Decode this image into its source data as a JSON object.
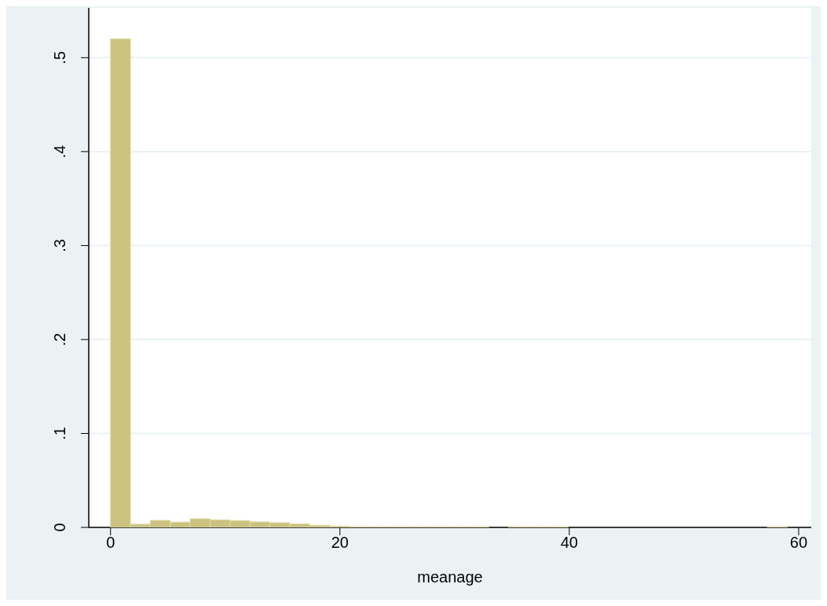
{
  "chart_data": {
    "type": "histogram",
    "xlabel": "meanage",
    "bins": [
      0,
      1.735,
      3.471,
      5.206,
      6.941,
      8.676,
      10.412,
      12.147,
      13.882,
      15.618,
      17.353,
      19.088,
      20.824,
      22.559,
      24.294,
      26.029,
      27.765,
      29.5,
      31.235,
      32.971,
      34.706,
      36.441,
      38.176,
      39.912,
      41.647,
      43.382,
      45.118,
      46.853,
      48.588,
      50.324,
      52.059,
      53.794,
      55.529,
      57.265,
      59
    ],
    "values": [
      0.52,
      0.0034,
      0.0075,
      0.0056,
      0.0092,
      0.0081,
      0.0073,
      0.0059,
      0.005,
      0.0037,
      0.0023,
      0.0014,
      0.0008,
      0.0008,
      0.0008,
      0.0008,
      0.0008,
      0.0008,
      0.0008,
      0,
      0.0008,
      0.0008,
      0.0008,
      0,
      0,
      0,
      0,
      0,
      0,
      0,
      0,
      0,
      0,
      0.0008
    ],
    "color": "#cbc27f",
    "xlim": [
      -1.9,
      61.1
    ],
    "xticks": [
      0,
      20,
      40,
      60
    ],
    "ylim": [
      0,
      0.553
    ],
    "yticks": [
      0,
      {
        "value": 0.1,
        "label": ".1"
      },
      {
        "value": 0.2,
        "label": ".2"
      },
      {
        "value": 0.3,
        "label": ".3"
      },
      {
        "value": 0.4,
        "label": ".4"
      },
      {
        "value": 0.5,
        "label": ".5"
      }
    ],
    "grid": "y"
  }
}
